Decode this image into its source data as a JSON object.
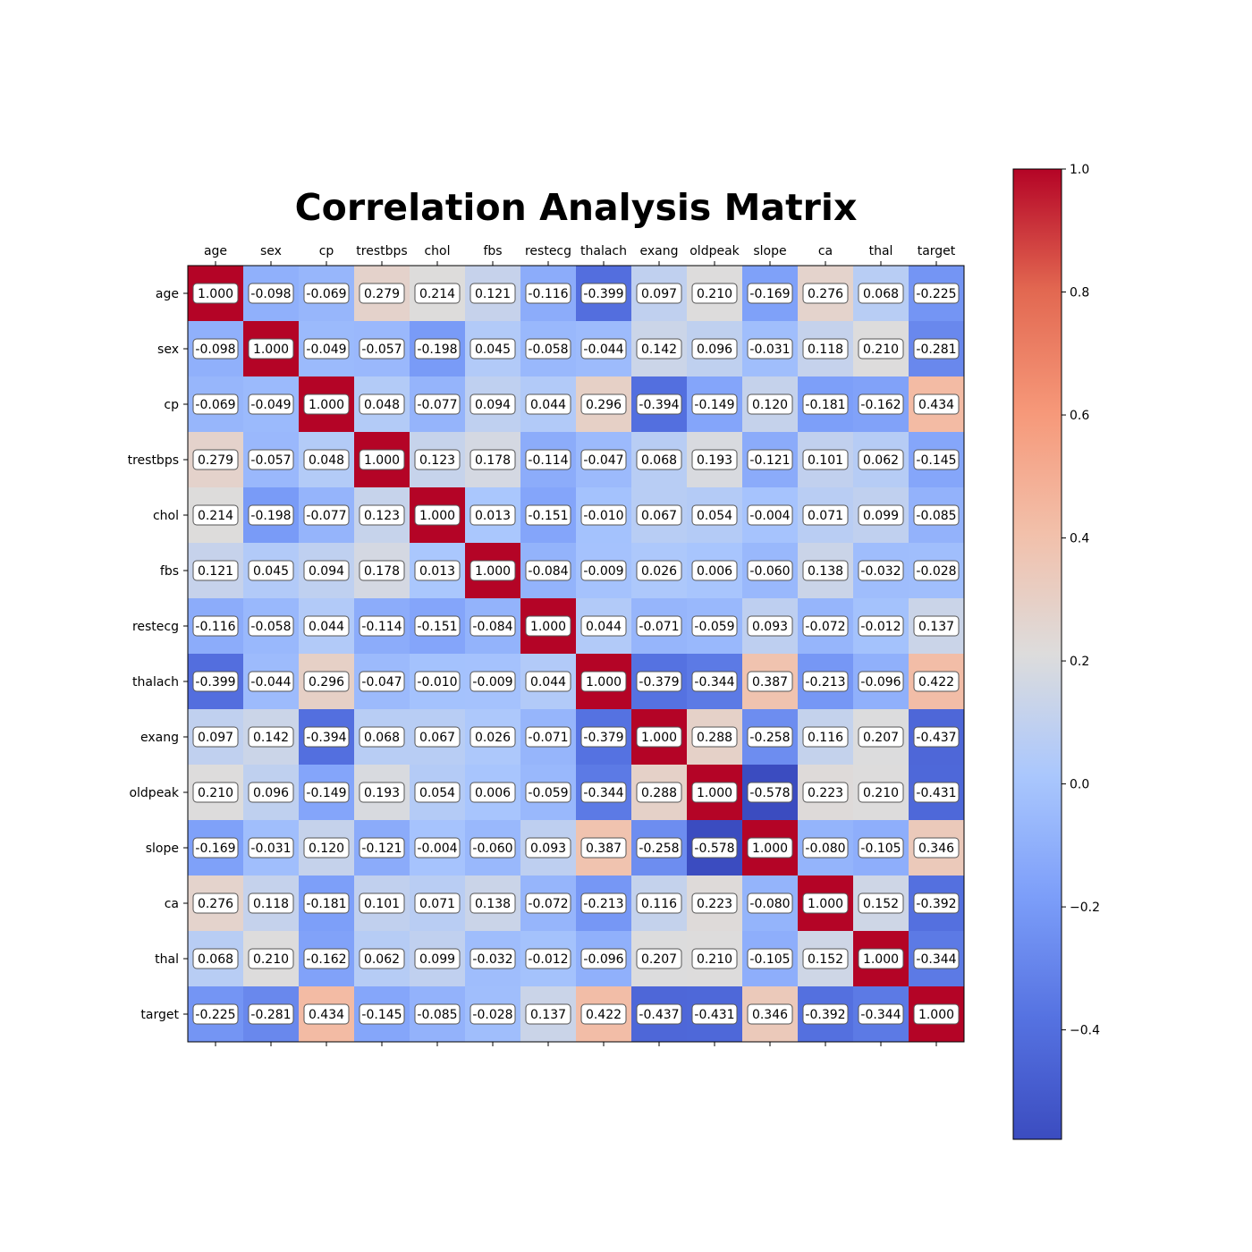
{
  "chart_data": {
    "type": "heatmap",
    "title": "Correlation Analysis Matrix",
    "colormap": "coolwarm",
    "vmin": -0.578,
    "vmax": 1.0,
    "labels": [
      "age",
      "sex",
      "cp",
      "trestbps",
      "chol",
      "fbs",
      "restecg",
      "thalach",
      "exang",
      "oldpeak",
      "slope",
      "ca",
      "thal",
      "target"
    ],
    "matrix": [
      [
        "1.000",
        "-0.098",
        "-0.069",
        "0.279",
        "0.214",
        "0.121",
        "-0.116",
        "-0.399",
        "0.097",
        "0.210",
        "-0.169",
        "0.276",
        "0.068",
        "-0.225"
      ],
      [
        "-0.098",
        "1.000",
        "-0.049",
        "-0.057",
        "-0.198",
        "0.045",
        "-0.058",
        "-0.044",
        "0.142",
        "0.096",
        "-0.031",
        "0.118",
        "0.210",
        "-0.281"
      ],
      [
        "-0.069",
        "-0.049",
        "1.000",
        "0.048",
        "-0.077",
        "0.094",
        "0.044",
        "0.296",
        "-0.394",
        "-0.149",
        "0.120",
        "-0.181",
        "-0.162",
        "0.434"
      ],
      [
        "0.279",
        "-0.057",
        "0.048",
        "1.000",
        "0.123",
        "0.178",
        "-0.114",
        "-0.047",
        "0.068",
        "0.193",
        "-0.121",
        "0.101",
        "0.062",
        "-0.145"
      ],
      [
        "0.214",
        "-0.198",
        "-0.077",
        "0.123",
        "1.000",
        "0.013",
        "-0.151",
        "-0.010",
        "0.067",
        "0.054",
        "-0.004",
        "0.071",
        "0.099",
        "-0.085"
      ],
      [
        "0.121",
        "0.045",
        "0.094",
        "0.178",
        "0.013",
        "1.000",
        "-0.084",
        "-0.009",
        "0.026",
        "0.006",
        "-0.060",
        "0.138",
        "-0.032",
        "-0.028"
      ],
      [
        "-0.116",
        "-0.058",
        "0.044",
        "-0.114",
        "-0.151",
        "-0.084",
        "1.000",
        "0.044",
        "-0.071",
        "-0.059",
        "0.093",
        "-0.072",
        "-0.012",
        "0.137"
      ],
      [
        "-0.399",
        "-0.044",
        "0.296",
        "-0.047",
        "-0.010",
        "-0.009",
        "0.044",
        "1.000",
        "-0.379",
        "-0.344",
        "0.387",
        "-0.213",
        "-0.096",
        "0.422"
      ],
      [
        "0.097",
        "0.142",
        "-0.394",
        "0.068",
        "0.067",
        "0.026",
        "-0.071",
        "-0.379",
        "1.000",
        "0.288",
        "-0.258",
        "0.116",
        "0.207",
        "-0.437"
      ],
      [
        "0.210",
        "0.096",
        "-0.149",
        "0.193",
        "0.054",
        "0.006",
        "-0.059",
        "-0.344",
        "0.288",
        "1.000",
        "-0.578",
        "0.223",
        "0.210",
        "-0.431"
      ],
      [
        "-0.169",
        "-0.031",
        "0.120",
        "-0.121",
        "-0.004",
        "-0.060",
        "0.093",
        "0.387",
        "-0.258",
        "-0.578",
        "1.000",
        "-0.080",
        "-0.105",
        "0.346"
      ],
      [
        "0.276",
        "0.118",
        "-0.181",
        "0.101",
        "0.071",
        "0.138",
        "-0.072",
        "-0.213",
        "0.116",
        "0.223",
        "-0.080",
        "1.000",
        "0.152",
        "-0.392"
      ],
      [
        "0.068",
        "0.210",
        "-0.162",
        "0.062",
        "0.099",
        "-0.032",
        "-0.012",
        "-0.096",
        "0.207",
        "0.210",
        "-0.105",
        "0.152",
        "1.000",
        "-0.344"
      ],
      [
        "-0.225",
        "-0.281",
        "0.434",
        "-0.145",
        "-0.085",
        "-0.028",
        "0.137",
        "0.422",
        "-0.437",
        "-0.431",
        "0.346",
        "-0.392",
        "-0.344",
        "1.000"
      ]
    ],
    "colorbar": {
      "ticks": [
        1.0,
        0.8,
        0.6,
        0.4,
        0.2,
        0.0,
        -0.2,
        -0.4
      ],
      "tick_labels": [
        "1.0",
        "0.8",
        "0.6",
        "0.4",
        "0.2",
        "0.0",
        "−0.2",
        "−0.4"
      ]
    },
    "grid": false,
    "x_ticks_position": "top"
  }
}
